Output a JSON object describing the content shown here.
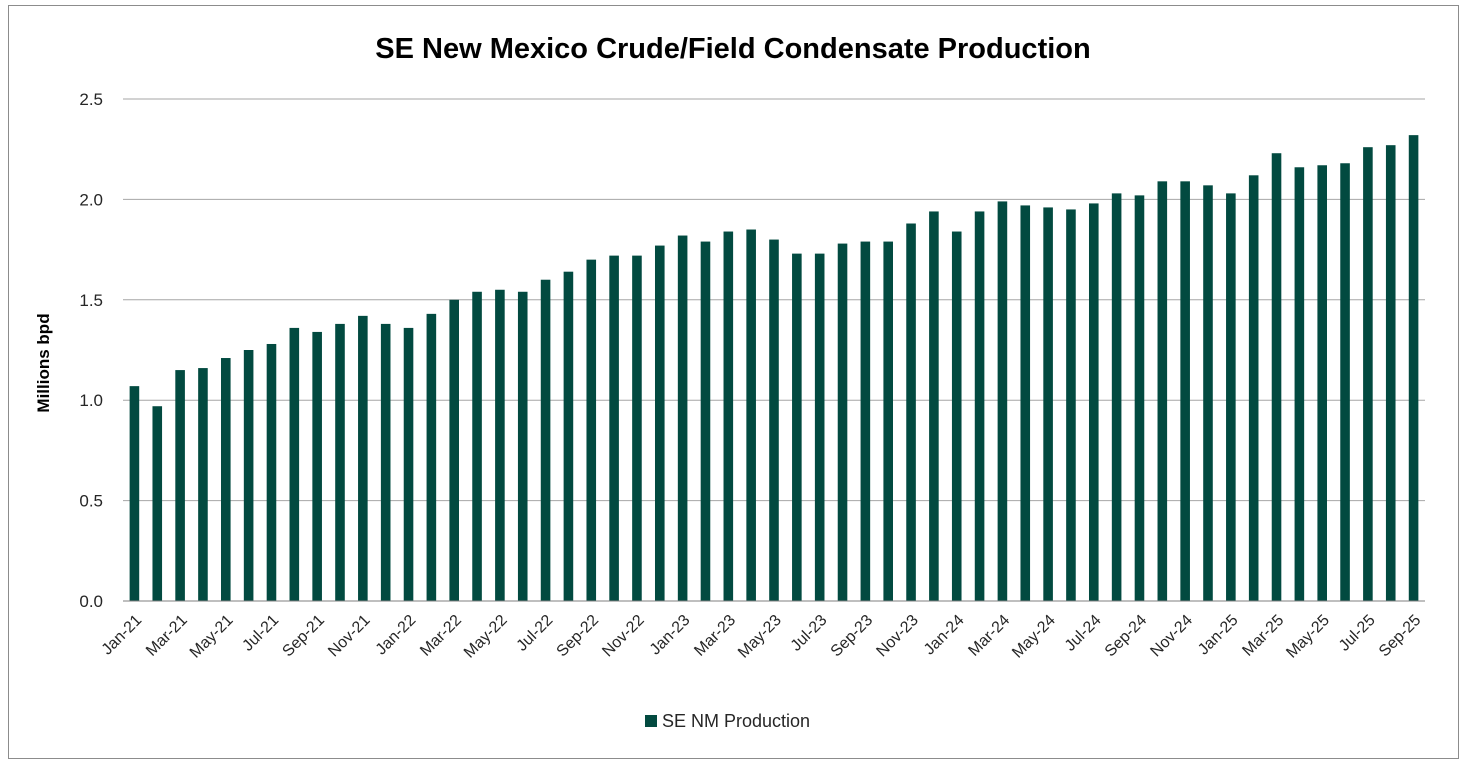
{
  "chart_data": {
    "type": "bar",
    "title": "SE New Mexico Crude/Field Condensate Production",
    "xlabel": "",
    "ylabel": "Millions bpd",
    "ylim": [
      0,
      2.5
    ],
    "yticks": [
      "0.0",
      "0.5",
      "1.0",
      "1.5",
      "2.0",
      "2.5"
    ],
    "grid": true,
    "legend": "bottom-center",
    "bar_color": "#024a40",
    "categories": [
      "Jan-21",
      "Feb-21",
      "Mar-21",
      "Apr-21",
      "May-21",
      "Jun-21",
      "Jul-21",
      "Aug-21",
      "Sep-21",
      "Oct-21",
      "Nov-21",
      "Dec-21",
      "Jan-22",
      "Feb-22",
      "Mar-22",
      "Apr-22",
      "May-22",
      "Jun-22",
      "Jul-22",
      "Aug-22",
      "Sep-22",
      "Oct-22",
      "Nov-22",
      "Dec-22",
      "Jan-23",
      "Feb-23",
      "Mar-23",
      "Apr-23",
      "May-23",
      "Jun-23",
      "Jul-23",
      "Aug-23",
      "Sep-23",
      "Oct-23",
      "Nov-23",
      "Dec-23",
      "Jan-24",
      "Feb-24",
      "Mar-24",
      "Apr-24",
      "May-24",
      "Jun-24",
      "Jul-24",
      "Aug-24",
      "Sep-24",
      "Oct-24",
      "Nov-24",
      "Dec-24",
      "Jan-25",
      "Feb-25",
      "Mar-25",
      "Apr-25",
      "May-25",
      "Jun-25",
      "Jul-25",
      "Aug-25",
      "Sep-25"
    ],
    "xtick_labels": [
      "Jan-21",
      "Mar-21",
      "May-21",
      "Jul-21",
      "Sep-21",
      "Nov-21",
      "Jan-22",
      "Mar-22",
      "May-22",
      "Jul-22",
      "Sep-22",
      "Nov-22",
      "Jan-23",
      "Mar-23",
      "May-23",
      "Jul-23",
      "Sep-23",
      "Nov-23",
      "Jan-24",
      "Mar-24",
      "May-24",
      "Jul-24",
      "Sep-24",
      "Nov-24",
      "Jan-25",
      "Mar-25",
      "May-25",
      "Jul-25",
      "Sep-25"
    ],
    "series": [
      {
        "name": "SE NM Production",
        "values": [
          1.07,
          0.97,
          1.15,
          1.16,
          1.21,
          1.25,
          1.28,
          1.36,
          1.34,
          1.38,
          1.42,
          1.38,
          1.36,
          1.43,
          1.5,
          1.54,
          1.55,
          1.54,
          1.6,
          1.64,
          1.7,
          1.72,
          1.72,
          1.77,
          1.82,
          1.79,
          1.84,
          1.85,
          1.8,
          1.73,
          1.73,
          1.78,
          1.79,
          1.79,
          1.88,
          1.94,
          1.84,
          1.94,
          1.99,
          1.97,
          1.96,
          1.95,
          1.98,
          2.03,
          2.02,
          2.09,
          2.09,
          2.07,
          2.03,
          2.12,
          2.23,
          2.16,
          2.17,
          2.18,
          2.26,
          2.27,
          2.32
        ]
      }
    ]
  }
}
